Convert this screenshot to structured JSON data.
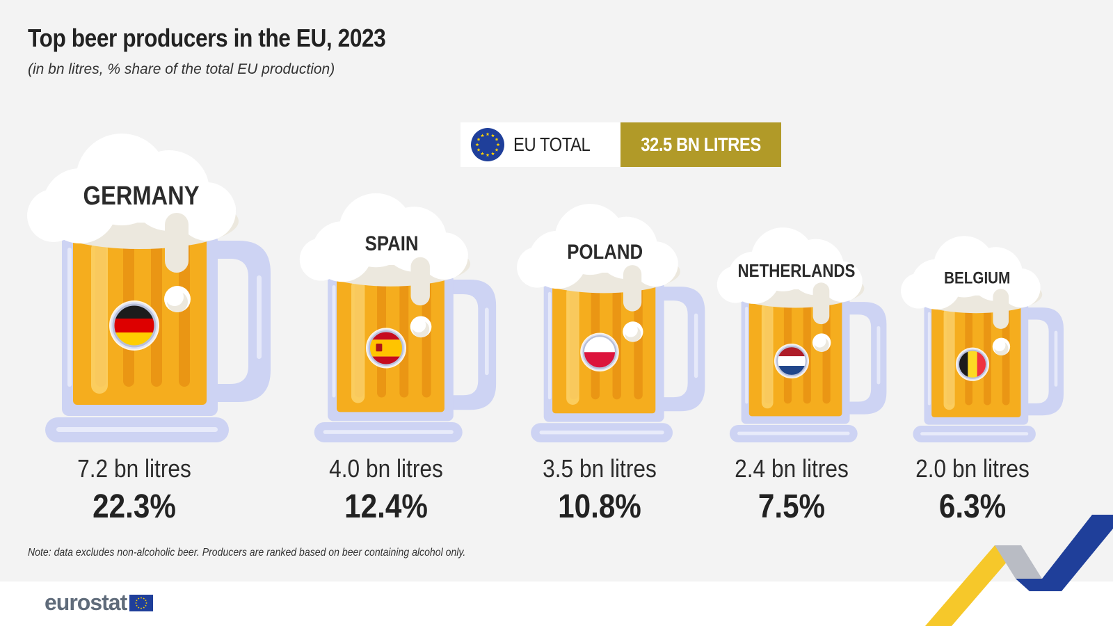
{
  "header": {
    "title": "Top beer producers in the EU, 2023",
    "subtitle": "(in bn litres, % share of the total EU production)"
  },
  "eu_total": {
    "label": "EU TOTAL",
    "value_text": "32.5 BN LITRES"
  },
  "chart_data": {
    "type": "bar",
    "title": "Top beer producers in the EU, 2023",
    "subtitle": "(in bn litres, % share of the total EU production)",
    "unit": "bn litres",
    "eu_total": 32.5,
    "categories": [
      "GERMANY",
      "SPAIN",
      "POLAND",
      "NETHERLANDS",
      "BELGIUM"
    ],
    "series": [
      {
        "values": [
          7.2,
          4.0,
          3.5,
          2.4,
          2.0
        ]
      },
      {
        "values": [
          22.3,
          12.4,
          10.8,
          7.5,
          6.3
        ]
      }
    ],
    "value_labels": [
      "7.2 bn litres",
      "4.0 bn litres",
      "3.5 bn litres",
      "2.4 bn litres",
      "2.0 bn litres"
    ],
    "share_labels": [
      "22.3%",
      "12.4%",
      "10.8%",
      "7.5%",
      "6.3%"
    ],
    "flags": [
      "de",
      "es",
      "pl",
      "nl",
      "be"
    ]
  },
  "note": "Note: data excludes non-alcoholic beer. Producers are ranked based on beer containing alcohol only.",
  "footer": {
    "logo_text": "eurostat"
  },
  "colors": {
    "beer": "#f5ad1e",
    "beer_stripe": "#e58f12",
    "glass": "#cdd3f3",
    "foam": "#ffffff",
    "foam_shade": "#ece8de",
    "gold": "#b19a28",
    "eu_blue": "#1f3f9a"
  }
}
